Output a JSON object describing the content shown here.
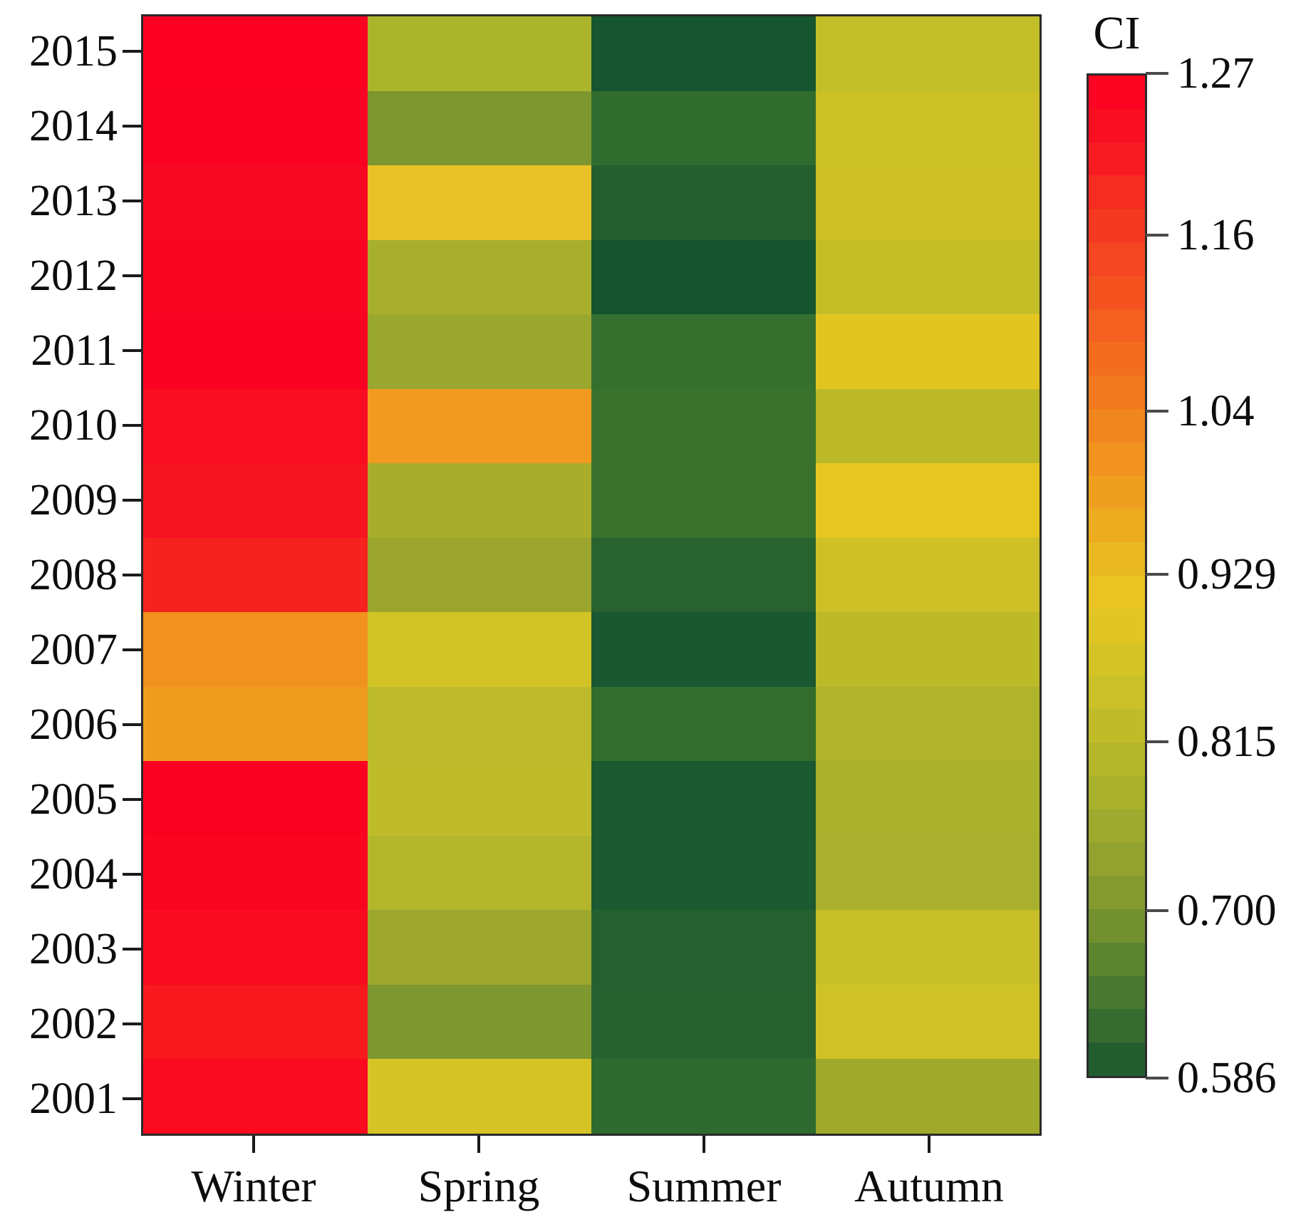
{
  "colorbar": {
    "title": "CI",
    "min": 0.586,
    "max": 1.27,
    "tick_labels": [
      "1.27",
      "1.16",
      "1.04",
      "0.929",
      "0.815",
      "0.700",
      "0.586"
    ],
    "tick_values": [
      1.27,
      1.16,
      1.04,
      0.929,
      0.815,
      0.7,
      0.586
    ],
    "steps": 30,
    "gradient_stops": [
      [
        0.0,
        "#FC0022"
      ],
      [
        0.06,
        "#FA1222"
      ],
      [
        0.12,
        "#F62C21"
      ],
      [
        0.18,
        "#F44520"
      ],
      [
        0.24,
        "#F45C1F"
      ],
      [
        0.3,
        "#F3731E"
      ],
      [
        0.36,
        "#F28A1E"
      ],
      [
        0.42,
        "#EFA01F"
      ],
      [
        0.47,
        "#ECB420"
      ],
      [
        0.52,
        "#E9C522"
      ],
      [
        0.575,
        "#D8C525"
      ],
      [
        0.63,
        "#C6BE28"
      ],
      [
        0.665,
        "#BCBA2A"
      ],
      [
        0.72,
        "#A8B02C"
      ],
      [
        0.78,
        "#93A32E"
      ],
      [
        0.833,
        "#7E962F"
      ],
      [
        0.88,
        "#5F8630"
      ],
      [
        0.93,
        "#417430"
      ],
      [
        0.97,
        "#2A6430"
      ],
      [
        1.0,
        "#17552F"
      ]
    ]
  },
  "chart_data": {
    "type": "heatmap",
    "title": "",
    "xlabel": "",
    "ylabel": "",
    "legend_title": "CI",
    "columns": [
      "Winter",
      "Spring",
      "Summer",
      "Autumn"
    ],
    "rows": [
      "2015",
      "2014",
      "2013",
      "2012",
      "2011",
      "2010",
      "2009",
      "2008",
      "2007",
      "2006",
      "2005",
      "2004",
      "2003",
      "2002",
      "2001"
    ],
    "value_range": [
      0.586,
      1.27
    ],
    "values": [
      [
        1.27,
        0.79,
        0.59,
        0.84
      ],
      [
        1.26,
        0.7,
        0.64,
        0.86
      ],
      [
        1.25,
        0.92,
        0.61,
        0.86
      ],
      [
        1.26,
        0.78,
        0.586,
        0.845
      ],
      [
        1.26,
        0.76,
        0.65,
        0.91
      ],
      [
        1.24,
        1.0,
        0.66,
        0.82
      ],
      [
        1.23,
        0.78,
        0.66,
        0.92
      ],
      [
        1.21,
        0.76,
        0.62,
        0.86
      ],
      [
        1.04,
        0.88,
        0.595,
        0.82
      ],
      [
        1.01,
        0.82,
        0.645,
        0.79
      ],
      [
        1.26,
        0.82,
        0.6,
        0.785
      ],
      [
        1.25,
        0.8,
        0.6,
        0.78
      ],
      [
        1.25,
        0.765,
        0.615,
        0.85
      ],
      [
        1.22,
        0.705,
        0.62,
        0.865
      ],
      [
        1.24,
        0.885,
        0.635,
        0.77
      ]
    ],
    "cell_colors": [
      [
        "#FB0023",
        "#ABB52C",
        "#165530",
        "#C2BE28"
      ],
      [
        "#FA0323",
        "#7E962F",
        "#306C2E",
        "#CBC026"
      ],
      [
        "#F90823",
        "#E8C226",
        "#245E2F",
        "#CDC126"
      ],
      [
        "#FA0522",
        "#A8AF2D",
        "#15542F",
        "#C4BE27"
      ],
      [
        "#FA0323",
        "#99A72F",
        "#36702E",
        "#E3C521"
      ],
      [
        "#F90D22",
        "#F29A1F",
        "#3A722D",
        "#BCB928"
      ],
      [
        "#F71421",
        "#A8AE2C",
        "#3A722D",
        "#E6C722"
      ],
      [
        "#F6221E",
        "#9BA52D",
        "#28622F",
        "#CDC127"
      ],
      [
        "#F0921D",
        "#D2C326",
        "#1A5831",
        "#BCBA29"
      ],
      [
        "#EF9C1E",
        "#BDBA2B",
        "#336C2D",
        "#AFB42C"
      ],
      [
        "#FB0121",
        "#BFBC2B",
        "#1B5931",
        "#A9B12D"
      ],
      [
        "#FA0520",
        "#B3B62B",
        "#1C5A31",
        "#A9B02D"
      ],
      [
        "#F90B20",
        "#9DA72E",
        "#266030",
        "#C6BF27"
      ],
      [
        "#F7191E",
        "#7F972F",
        "#276130",
        "#CFC226"
      ],
      [
        "#FA0A1E",
        "#D6C426",
        "#2F6A2E",
        "#9FAA2D"
      ]
    ]
  }
}
